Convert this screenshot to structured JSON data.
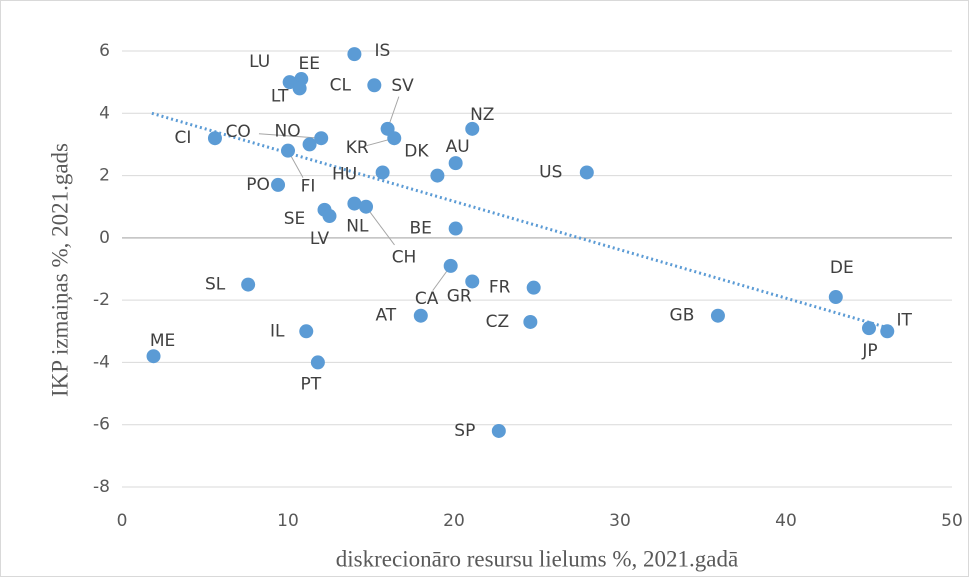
{
  "chart_data": {
    "type": "scatter",
    "x_label": "diskrecionāro resursu lielums %, 2021.gadā",
    "y_label": "IKP izmaiņas %,  2021.gads",
    "xlim": [
      0,
      50
    ],
    "xticks": [
      0,
      10,
      20,
      30,
      40,
      50
    ],
    "ylim": [
      -8,
      6
    ],
    "yticks": [
      -8,
      -6,
      -4,
      -2,
      0,
      2,
      4,
      6
    ],
    "grid": true,
    "color": "#5b9bd5",
    "labels": [
      "IS",
      "EE",
      "LU",
      "LT",
      "CL",
      "SV",
      "KR",
      "DK",
      "NZ",
      "AU",
      "CI",
      "CO",
      "NO",
      "PO",
      "FI",
      "HU",
      "US",
      "SE",
      "LV",
      "NL",
      "CH",
      "BE",
      "CA",
      "GR",
      "FR",
      "SL",
      "AT",
      "CZ",
      "GB",
      "DE",
      "JP",
      "IT",
      "IL",
      "PT",
      "ME",
      "SP"
    ],
    "x": [
      14.0,
      10.8,
      10.1,
      10.7,
      15.2,
      16.0,
      16.4,
      19.0,
      21.1,
      20.1,
      5.6,
      12.0,
      11.3,
      9.4,
      10.0,
      15.7,
      28.0,
      12.2,
      12.5,
      14.0,
      14.7,
      20.1,
      19.8,
      21.1,
      24.8,
      7.6,
      18.0,
      24.6,
      35.9,
      43.0,
      45.0,
      46.1,
      11.1,
      11.8,
      1.9,
      22.7
    ],
    "y": [
      5.9,
      5.1,
      5.0,
      4.8,
      4.9,
      3.5,
      3.2,
      2.0,
      3.5,
      2.4,
      3.2,
      3.2,
      3.0,
      1.7,
      2.8,
      2.1,
      2.1,
      0.9,
      0.7,
      1.1,
      1.0,
      0.3,
      -0.9,
      -1.4,
      -1.6,
      -1.5,
      -2.5,
      -2.7,
      -2.5,
      -1.9,
      -2.9,
      -3.0,
      -3.0,
      -4.0,
      -3.8,
      -6.2
    ],
    "trendline": {
      "x": [
        1.8,
        46.2
      ],
      "y": [
        4.0,
        -2.9
      ],
      "color": "#5b9bd5"
    }
  }
}
